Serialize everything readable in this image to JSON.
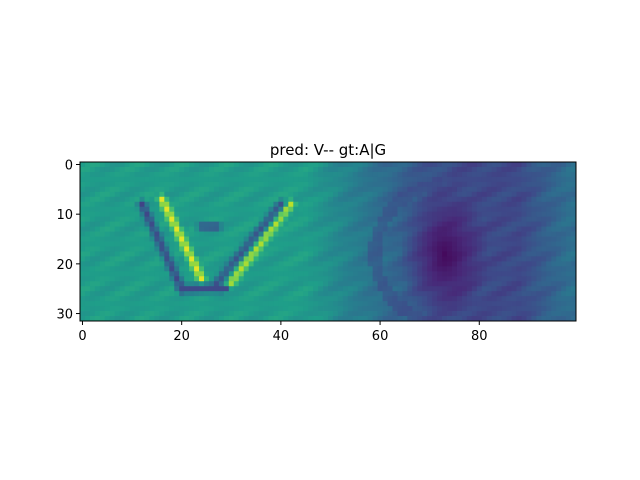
{
  "chart_data": {
    "type": "heatmap",
    "title": "pred: V-- gt:A|G",
    "xlabel": "",
    "ylabel": "",
    "image_shape": [
      32,
      100
    ],
    "x_ticks": [
      0,
      20,
      40,
      60,
      80
    ],
    "y_ticks": [
      0,
      10,
      20,
      30
    ],
    "xlim": [
      -0.5,
      99.5
    ],
    "ylim": [
      31.5,
      -0.5
    ],
    "colormap": "viridis",
    "color_scale": [
      0,
      1
    ],
    "grid": false,
    "features": [
      {
        "kind": "stroke",
        "from": [
          16,
          7
        ],
        "to": [
          24,
          23
        ],
        "value": 0.96
      },
      {
        "kind": "stroke",
        "from": [
          12,
          8
        ],
        "to": [
          20,
          25
        ],
        "value": 0.2
      },
      {
        "kind": "stroke",
        "from": [
          29,
          25
        ],
        "to": [
          42,
          8
        ],
        "value": 0.9
      },
      {
        "kind": "stroke",
        "from": [
          27,
          24
        ],
        "to": [
          40,
          8
        ],
        "value": 0.25
      },
      {
        "kind": "stroke",
        "from": [
          20,
          25
        ],
        "to": [
          29,
          25
        ],
        "value": 0.22
      },
      {
        "kind": "stroke",
        "from": [
          24,
          12.5
        ],
        "to": [
          27,
          12.5
        ],
        "value": 0.2
      },
      {
        "kind": "blob",
        "center": [
          73,
          18
        ],
        "radius": [
          9,
          14
        ],
        "value": 0.0
      },
      {
        "kind": "ring",
        "center": [
          73,
          18
        ],
        "radius": 14,
        "value": 0.18
      }
    ]
  }
}
